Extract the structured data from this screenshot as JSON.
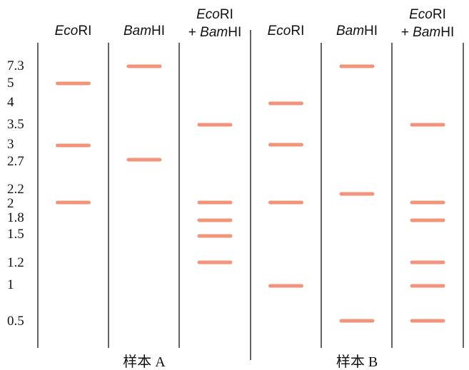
{
  "colors": {
    "band": "#f2947a",
    "line": "#222222",
    "text": "#111111"
  },
  "size_markers": [
    "7.3",
    "5",
    "4",
    "3.5",
    "3",
    "2.7",
    "2.2",
    "2",
    "1.8",
    "1.5",
    "1.2",
    "1",
    "0.5"
  ],
  "lanes": [
    {
      "id": "a-ecori",
      "label_italic": "Eco",
      "label_rest": "RI",
      "bands": [
        "5",
        "3",
        "2"
      ]
    },
    {
      "id": "a-bamhi",
      "label_italic": "Bam",
      "label_rest": "HI",
      "bands": [
        "7.3",
        "2.7"
      ]
    },
    {
      "id": "a-double",
      "label_line1_italic": "Eco",
      "label_line1_rest": "RI",
      "label_line2_prefix": "+ ",
      "label_line2_italic": "Bam",
      "label_line2_rest": "HI",
      "bands": [
        "3.5",
        "2",
        "1.8",
        "1.5",
        "1.2"
      ]
    },
    {
      "id": "b-ecori",
      "label_italic": "Eco",
      "label_rest": "RI",
      "bands": [
        "4",
        "3",
        "2",
        "1"
      ]
    },
    {
      "id": "b-bamhi",
      "label_italic": "Bam",
      "label_rest": "HI",
      "bands": [
        "7.3",
        "2.2",
        "0.5"
      ]
    },
    {
      "id": "b-double",
      "label_line1_italic": "Eco",
      "label_line1_rest": "RI",
      "label_line2_prefix": "+ ",
      "label_line2_italic": "Bam",
      "label_line2_rest": "HI",
      "bands": [
        "3.5",
        "2",
        "1.8",
        "1.2",
        "1",
        "0.5"
      ]
    }
  ],
  "samples": [
    {
      "id": "sample-a",
      "label": "样本 A"
    },
    {
      "id": "sample-b",
      "label": "样本 B"
    }
  ]
}
